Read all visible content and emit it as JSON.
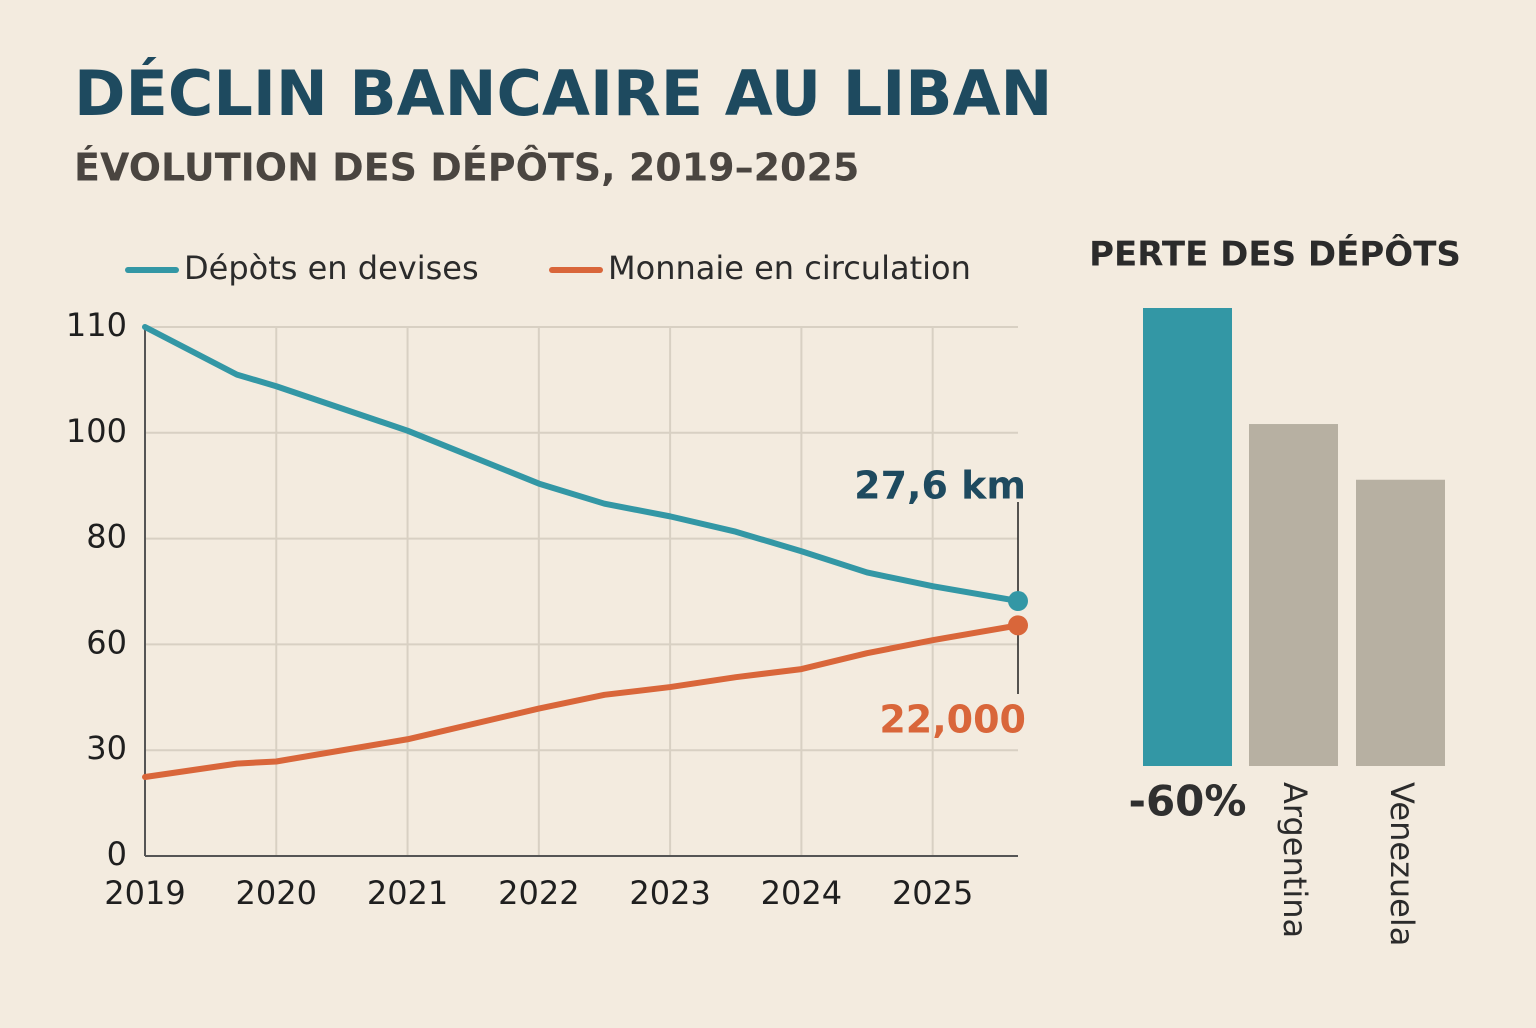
{
  "chart_data": [
    {
      "type": "line",
      "title": "DÉCLIN BANCAIRE AU LIBAN",
      "subtitle": "ÉVOLUTION DES DÉPÔTS, 2019–2025",
      "x": [
        2019,
        2019.7,
        2020,
        2021,
        2022,
        2022.5,
        2023,
        2023.5,
        2024,
        2024.5,
        2025,
        2025.65
      ],
      "series": [
        {
          "name": "Dépòts en devises",
          "color": "#3397a5",
          "values": [
            110,
            105.5,
            104.4,
            100.2,
            90.4,
            86.6,
            84.2,
            81.3,
            77.6,
            73.6,
            71,
            68.2
          ]
        },
        {
          "name": "Monnaie en circulation",
          "color": "#d9663a",
          "values": [
            22.4,
            26.2,
            26.8,
            33.1,
            41.8,
            45.7,
            47.9,
            50.7,
            53,
            57.5,
            60.8,
            63.6
          ]
        }
      ],
      "xlim": [
        2019,
        2025.65
      ],
      "xticks": [
        2019,
        2020,
        2021,
        2022,
        2023,
        2024,
        2025
      ],
      "ylim": [
        0,
        110
      ],
      "yticks": [
        0,
        30,
        60,
        80,
        100,
        110
      ],
      "grid": true,
      "annotations": [
        {
          "text": "27,6 km",
          "color": "#1e4a5f"
        },
        {
          "text": "22,000",
          "color": "#d9663a"
        }
      ]
    },
    {
      "type": "bar",
      "title": "PERTE DES DÉPÔTS",
      "categories": [
        null,
        "Argentina",
        "Venezuela"
      ],
      "values": [
        60,
        44.8,
        37.5
      ],
      "colors": [
        "#3397a5",
        "#b7b0a2",
        "#b7b0a2"
      ],
      "annotation": "-60%"
    }
  ]
}
